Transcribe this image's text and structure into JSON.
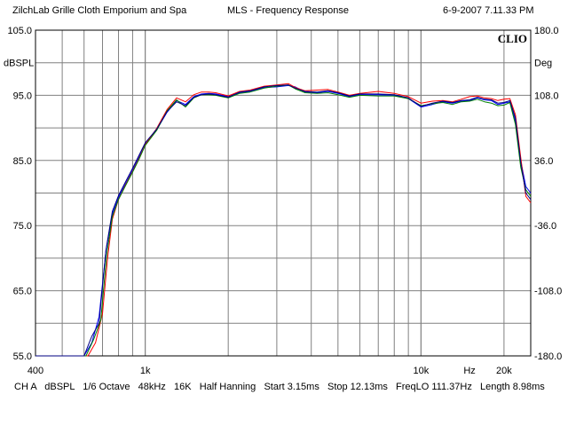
{
  "header": {
    "title_left": "ZilchLab Grille Cloth Emporium and Spa",
    "title_center": "MLS - Frequency Response",
    "timestamp": "6-9-2007 7.11.33 PM"
  },
  "brand": "CLIO",
  "footer": {
    "text": "CH A   dBSPL   1/6 Octave   48kHz   16K   Half Hanning   Start 3.15ms   Stop 12.13ms   FreqLO 111.37Hz   Length 8.98ms"
  },
  "colors": {
    "background": "#ffffff",
    "grid": "#808080",
    "series": [
      "#0000ff",
      "#ff0000",
      "#008000",
      "#000080"
    ]
  },
  "chart_data": {
    "type": "line",
    "title": "MLS - Frequency Response",
    "xscale": "log",
    "xlim": [
      400,
      25000
    ],
    "ylim": [
      55,
      105
    ],
    "ylim_right": [
      -180,
      180
    ],
    "ylabel": "dBSPL",
    "ylabel_right": "Deg",
    "xlabel": "Hz",
    "y_ticks": [
      "105.0",
      "95.0",
      "85.0",
      "75.0",
      "65.0",
      "55.0"
    ],
    "y_ticks_right": [
      "180.0",
      "108.0",
      "36.0",
      "-36.0",
      "-108.0",
      "-180.0"
    ],
    "x_tick_labels": [
      {
        "value": 400,
        "label": "400"
      },
      {
        "value": 1000,
        "label": "1k"
      },
      {
        "value": 10000,
        "label": "10k"
      },
      {
        "value": 20000,
        "label": "20k"
      }
    ],
    "grid": true,
    "series": [
      {
        "x": [
          400,
          600,
          640,
          680,
          720,
          760,
          800,
          850,
          900,
          950,
          1000,
          1100,
          1200,
          1300,
          1400,
          1500,
          1600,
          1700,
          1800,
          2000,
          2200,
          2400,
          2700,
          3000,
          3300,
          3500,
          3800,
          4200,
          4600,
          5000,
          5500,
          6000,
          7000,
          8000,
          9000,
          10000,
          11000,
          12000,
          13000,
          14000,
          15000,
          16000,
          17000,
          18000,
          19000,
          20000,
          21000,
          22000,
          23000,
          24000,
          25000
        ],
        "values": [
          55,
          55,
          57,
          61,
          71,
          76.8,
          79.3,
          81.5,
          83.5,
          85.5,
          87.5,
          89.7,
          92.4,
          94.2,
          93.6,
          94.8,
          95.2,
          95.3,
          95.2,
          94.8,
          95.4,
          95.6,
          96.2,
          96.3,
          96.5,
          96.3,
          95.5,
          95.4,
          95.6,
          95.3,
          94.8,
          95.1,
          95.1,
          95.0,
          94.5,
          93.2,
          93.6,
          94.0,
          93.8,
          94.1,
          94.2,
          94.6,
          94.3,
          94.2,
          93.6,
          93.8,
          94.0,
          91.0,
          85.0,
          81.0,
          80.0
        ]
      },
      {
        "x": [
          400,
          620,
          660,
          700,
          730,
          760,
          800,
          850,
          900,
          950,
          1000,
          1100,
          1200,
          1300,
          1400,
          1500,
          1600,
          1700,
          1800,
          2000,
          2200,
          2400,
          2700,
          3000,
          3300,
          3500,
          3800,
          4200,
          4600,
          5000,
          5500,
          6000,
          7000,
          8000,
          9000,
          10000,
          11000,
          12000,
          13000,
          14000,
          15000,
          16000,
          17000,
          18000,
          19000,
          20000,
          21000,
          22000,
          23000,
          24000,
          25000
        ],
        "values": [
          55,
          55,
          57,
          61.5,
          70,
          76,
          79,
          81.3,
          83.3,
          85.3,
          87.4,
          89.9,
          92.8,
          94.6,
          94.0,
          95.1,
          95.5,
          95.5,
          95.4,
          94.9,
          95.6,
          95.8,
          96.4,
          96.6,
          96.8,
          96.2,
          95.7,
          95.8,
          95.9,
          95.5,
          95.0,
          95.3,
          95.6,
          95.3,
          94.8,
          93.8,
          94.1,
          94.2,
          94.0,
          94.4,
          94.8,
          94.9,
          94.6,
          94.5,
          94.2,
          94.4,
          94.5,
          92.0,
          85.5,
          79.5,
          78.5
        ]
      },
      {
        "x": [
          400,
          610,
          650,
          690,
          725,
          760,
          800,
          850,
          900,
          950,
          1000,
          1100,
          1200,
          1300,
          1400,
          1500,
          1600,
          1700,
          1800,
          2000,
          2200,
          2400,
          2700,
          3000,
          3300,
          3500,
          3800,
          4200,
          4600,
          5000,
          5500,
          6000,
          7000,
          8000,
          9000,
          10000,
          11000,
          12000,
          13000,
          14000,
          15000,
          16000,
          17000,
          18000,
          19000,
          20000,
          21000,
          22000,
          23000,
          24000,
          25000
        ],
        "values": [
          55,
          55,
          57.5,
          60.5,
          70.5,
          76.4,
          79.0,
          81.2,
          83.2,
          85.2,
          87.3,
          89.6,
          92.6,
          94.3,
          93.2,
          94.6,
          95.1,
          95.1,
          95.0,
          94.6,
          95.3,
          95.5,
          96.1,
          96.4,
          96.6,
          96.0,
          95.4,
          95.3,
          95.4,
          95.1,
          94.7,
          95.0,
          94.9,
          94.9,
          94.5,
          93.4,
          93.7,
          93.9,
          93.6,
          94.0,
          94.1,
          94.4,
          94.0,
          93.8,
          93.4,
          93.5,
          93.9,
          90.5,
          84.0,
          80.5,
          79.5
        ]
      },
      {
        "x": [
          400,
          600,
          640,
          680,
          720,
          760,
          800,
          850,
          900,
          950,
          1000,
          1100,
          1200,
          1300,
          1400,
          1500,
          1600,
          1700,
          1800,
          2000,
          2200,
          2400,
          2700,
          3000,
          3300,
          3500,
          3800,
          4200,
          4600,
          5000,
          5500,
          6000,
          7000,
          8000,
          9000,
          10000,
          11000,
          12000,
          13000,
          14000,
          15000,
          16000,
          17000,
          18000,
          19000,
          20000,
          21000,
          22000,
          23000,
          24000,
          25000
        ],
        "values": [
          55,
          55,
          58,
          60,
          71.2,
          77.2,
          79.6,
          81.8,
          83.8,
          85.8,
          87.7,
          89.8,
          92.5,
          94.0,
          93.4,
          94.7,
          95.1,
          95.2,
          95.1,
          94.7,
          95.5,
          95.7,
          96.3,
          96.5,
          96.6,
          96.1,
          95.6,
          95.5,
          95.7,
          95.4,
          94.9,
          95.2,
          95.2,
          95.1,
          94.6,
          93.3,
          93.8,
          94.1,
          93.9,
          94.2,
          94.3,
          94.7,
          94.4,
          94.3,
          93.8,
          93.9,
          94.2,
          91.5,
          84.8,
          80.0,
          79.0
        ]
      }
    ]
  }
}
